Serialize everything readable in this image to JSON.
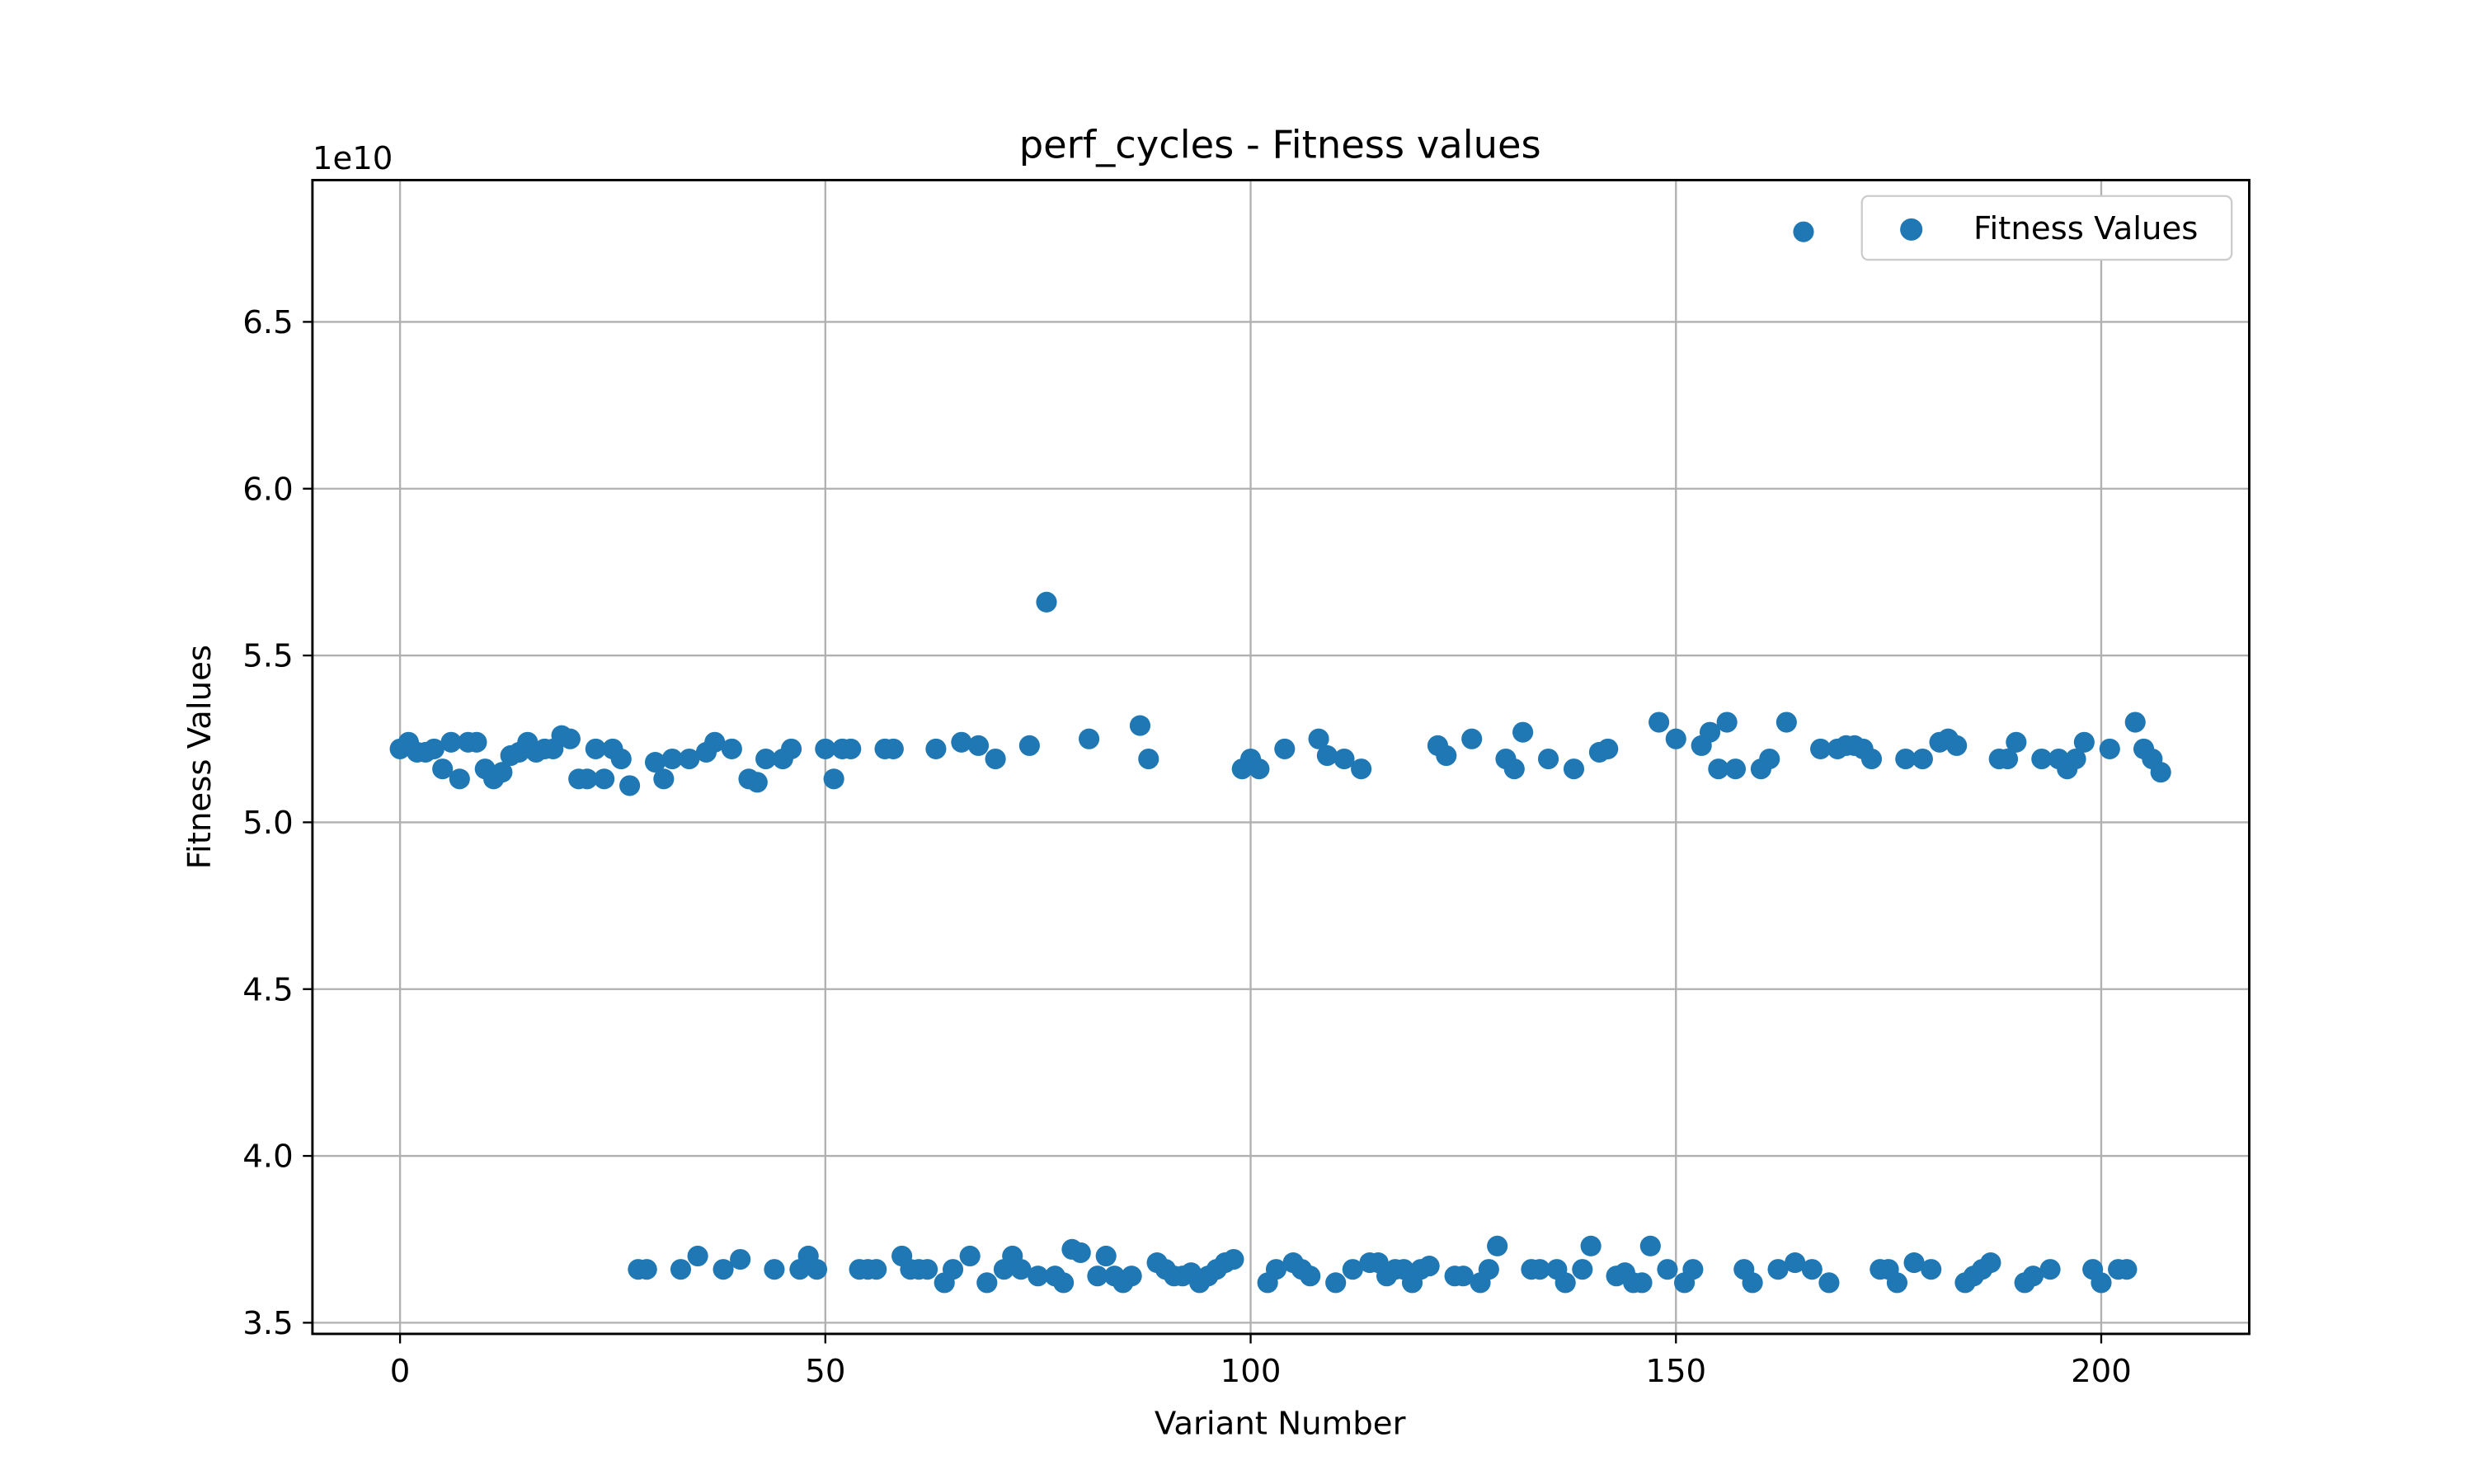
{
  "chart_data": {
    "type": "scatter",
    "title": "perf_cycles - Fitness values",
    "x_label": "Variant Number",
    "y_label": "Fitness Values",
    "y_offset_label": "1e10",
    "xlim": [
      -10.3,
      217.4
    ],
    "ylim": [
      3.4666,
      6.925
    ],
    "xticks": [
      0,
      50,
      100,
      150,
      200
    ],
    "yticks": [
      3.5,
      {
        "value": 4,
        "label": "4.0"
      },
      4.5,
      {
        "value": 5,
        "label": "5.0"
      },
      5.5,
      {
        "value": 6,
        "label": "6.0"
      },
      6.5
    ],
    "grid": true,
    "legend": "upper right",
    "x": [
      0,
      1,
      2,
      3,
      4,
      5,
      6,
      7,
      8,
      9,
      10,
      11,
      12,
      13,
      14,
      15,
      16,
      17,
      18,
      19,
      20,
      21,
      22,
      23,
      24,
      25,
      26,
      27,
      28,
      29,
      30,
      31,
      32,
      33,
      34,
      35,
      36,
      37,
      38,
      39,
      40,
      41,
      42,
      43,
      44,
      45,
      46,
      47,
      48,
      49,
      50,
      51,
      52,
      53,
      54,
      55,
      56,
      57,
      58,
      59,
      60,
      61,
      62,
      63,
      64,
      65,
      66,
      67,
      68,
      69,
      70,
      71,
      72,
      73,
      74,
      75,
      76,
      77,
      78,
      79,
      80,
      81,
      82,
      83,
      84,
      85,
      86,
      87,
      88,
      89,
      90,
      91,
      92,
      93,
      94,
      95,
      96,
      97,
      98,
      99,
      100,
      101,
      102,
      103,
      104,
      105,
      106,
      107,
      108,
      109,
      110,
      111,
      112,
      113,
      114,
      115,
      116,
      117,
      118,
      119,
      120,
      121,
      122,
      123,
      124,
      125,
      126,
      127,
      128,
      129,
      130,
      131,
      132,
      133,
      134,
      135,
      136,
      137,
      138,
      139,
      140,
      141,
      142,
      143,
      144,
      145,
      146,
      147,
      148,
      149,
      150,
      151,
      152,
      153,
      154,
      155,
      156,
      157,
      158,
      159,
      160,
      161,
      162,
      163,
      164,
      165,
      166,
      167,
      168,
      169,
      170,
      171,
      172,
      173,
      174,
      175,
      176,
      177,
      178,
      179,
      180,
      181,
      182,
      183,
      184,
      185,
      186,
      187,
      188,
      189,
      190,
      191,
      192,
      193,
      194,
      195,
      196,
      197,
      198,
      199,
      200,
      201,
      202,
      203,
      204,
      205,
      206,
      207
    ],
    "series": [
      {
        "name": "Fitness Values",
        "color": "#1f77b4",
        "values": [
          5.22,
          5.24,
          5.21,
          5.21,
          5.22,
          5.16,
          5.24,
          5.13,
          5.24,
          5.24,
          5.16,
          5.13,
          5.15,
          5.2,
          5.21,
          5.24,
          5.21,
          5.22,
          5.22,
          5.26,
          5.25,
          5.13,
          5.13,
          5.22,
          5.13,
          5.22,
          5.19,
          5.11,
          3.66,
          3.66,
          5.18,
          5.13,
          5.19,
          3.66,
          5.19,
          3.7,
          5.21,
          5.24,
          3.66,
          5.22,
          3.69,
          5.13,
          5.12,
          5.19,
          3.66,
          5.19,
          5.22,
          3.66,
          3.7,
          3.66,
          5.22,
          5.13,
          5.22,
          5.22,
          3.66,
          3.66,
          3.66,
          5.22,
          5.22,
          3.7,
          3.66,
          3.66,
          3.66,
          5.22,
          3.62,
          3.66,
          5.24,
          3.7,
          5.23,
          3.62,
          5.19,
          3.66,
          3.7,
          3.66,
          5.23,
          3.64,
          5.66,
          3.64,
          3.62,
          3.72,
          3.71,
          5.25,
          3.64,
          3.7,
          3.64,
          3.62,
          3.64,
          5.29,
          5.19,
          3.68,
          3.66,
          3.64,
          3.64,
          3.65,
          3.62,
          3.64,
          3.66,
          3.68,
          3.69,
          5.16,
          5.19,
          5.16,
          3.62,
          3.66,
          5.22,
          3.68,
          3.66,
          3.64,
          5.25,
          5.2,
          3.62,
          5.19,
          3.66,
          5.16,
          3.68,
          3.68,
          3.64,
          3.66,
          3.66,
          3.62,
          3.66,
          3.67,
          5.23,
          5.2,
          3.64,
          3.64,
          5.25,
          3.62,
          3.66,
          3.73,
          5.19,
          5.16,
          5.27,
          3.66,
          3.66,
          5.19,
          3.66,
          3.62,
          5.16,
          3.66,
          3.73,
          5.21,
          5.22,
          3.64,
          3.65,
          3.62,
          3.62,
          3.73,
          5.3,
          3.66,
          5.25,
          3.62,
          3.66,
          5.23,
          5.27,
          5.16,
          5.3,
          5.16,
          3.66,
          3.62,
          5.16,
          5.19,
          3.66,
          5.3,
          3.68,
          6.77,
          3.66,
          5.22,
          3.62,
          5.22,
          5.23,
          5.23,
          5.22,
          5.19,
          3.66,
          3.66,
          3.62,
          5.19,
          3.68,
          5.19,
          3.66,
          5.24,
          5.25,
          5.23,
          3.62,
          3.64,
          3.66,
          3.68,
          5.19,
          5.19,
          5.24,
          3.62,
          3.64,
          5.19,
          3.66,
          5.19,
          5.16,
          5.19,
          5.24,
          3.66,
          3.62,
          5.22,
          3.66,
          3.66,
          5.3,
          5.22,
          5.19,
          5.15
        ]
      }
    ]
  }
}
